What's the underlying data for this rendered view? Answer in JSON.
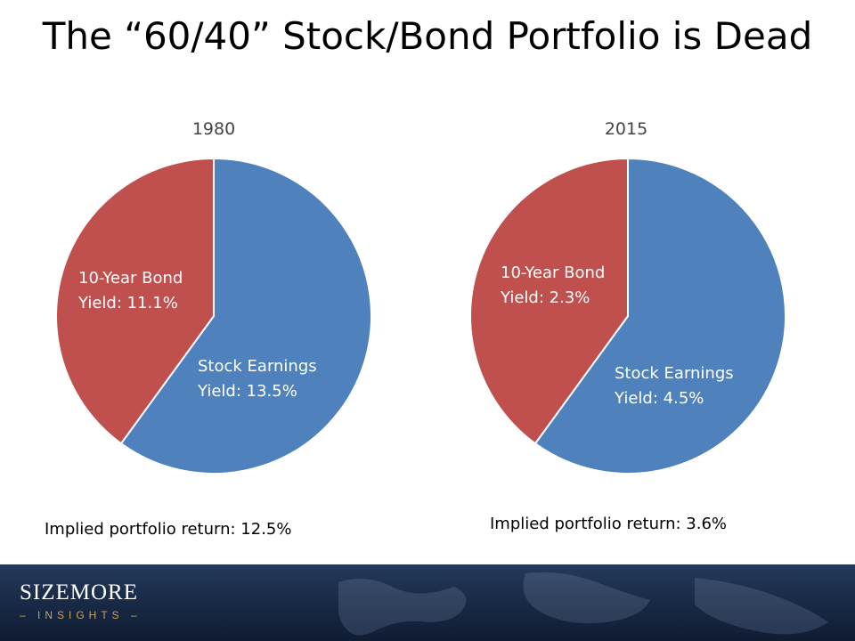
{
  "slide": {
    "title": "The “60/40” Stock/Bond Portfolio is Dead"
  },
  "colors": {
    "stock": "#4f81bd",
    "bond": "#c0504d",
    "footer": "#1a2b48",
    "brand_accent": "#c9a25a"
  },
  "chart_data": [
    {
      "type": "pie",
      "title": "1980",
      "categories": [
        "Stock Earnings",
        "10-Year Bond"
      ],
      "values": [
        60,
        40
      ],
      "labels": [
        {
          "line1": "Stock Earnings",
          "line2": "Yield: 13.5%"
        },
        {
          "line1": "10-Year Bond",
          "line2": "Yield: 11.1%"
        }
      ],
      "annotation": "Implied portfolio return: 12.5%"
    },
    {
      "type": "pie",
      "title": "2015",
      "categories": [
        "Stock Earnings",
        "10-Year Bond"
      ],
      "values": [
        60,
        40
      ],
      "labels": [
        {
          "line1": "Stock Earnings",
          "line2": "Yield: 4.5%"
        },
        {
          "line1": "10-Year Bond",
          "line2": "Yield: 2.3%"
        }
      ],
      "annotation": "Implied portfolio return: 3.6%"
    }
  ],
  "footer": {
    "brand_name": "SIZEMORE",
    "brand_sub": "– INSIGHTS –"
  }
}
